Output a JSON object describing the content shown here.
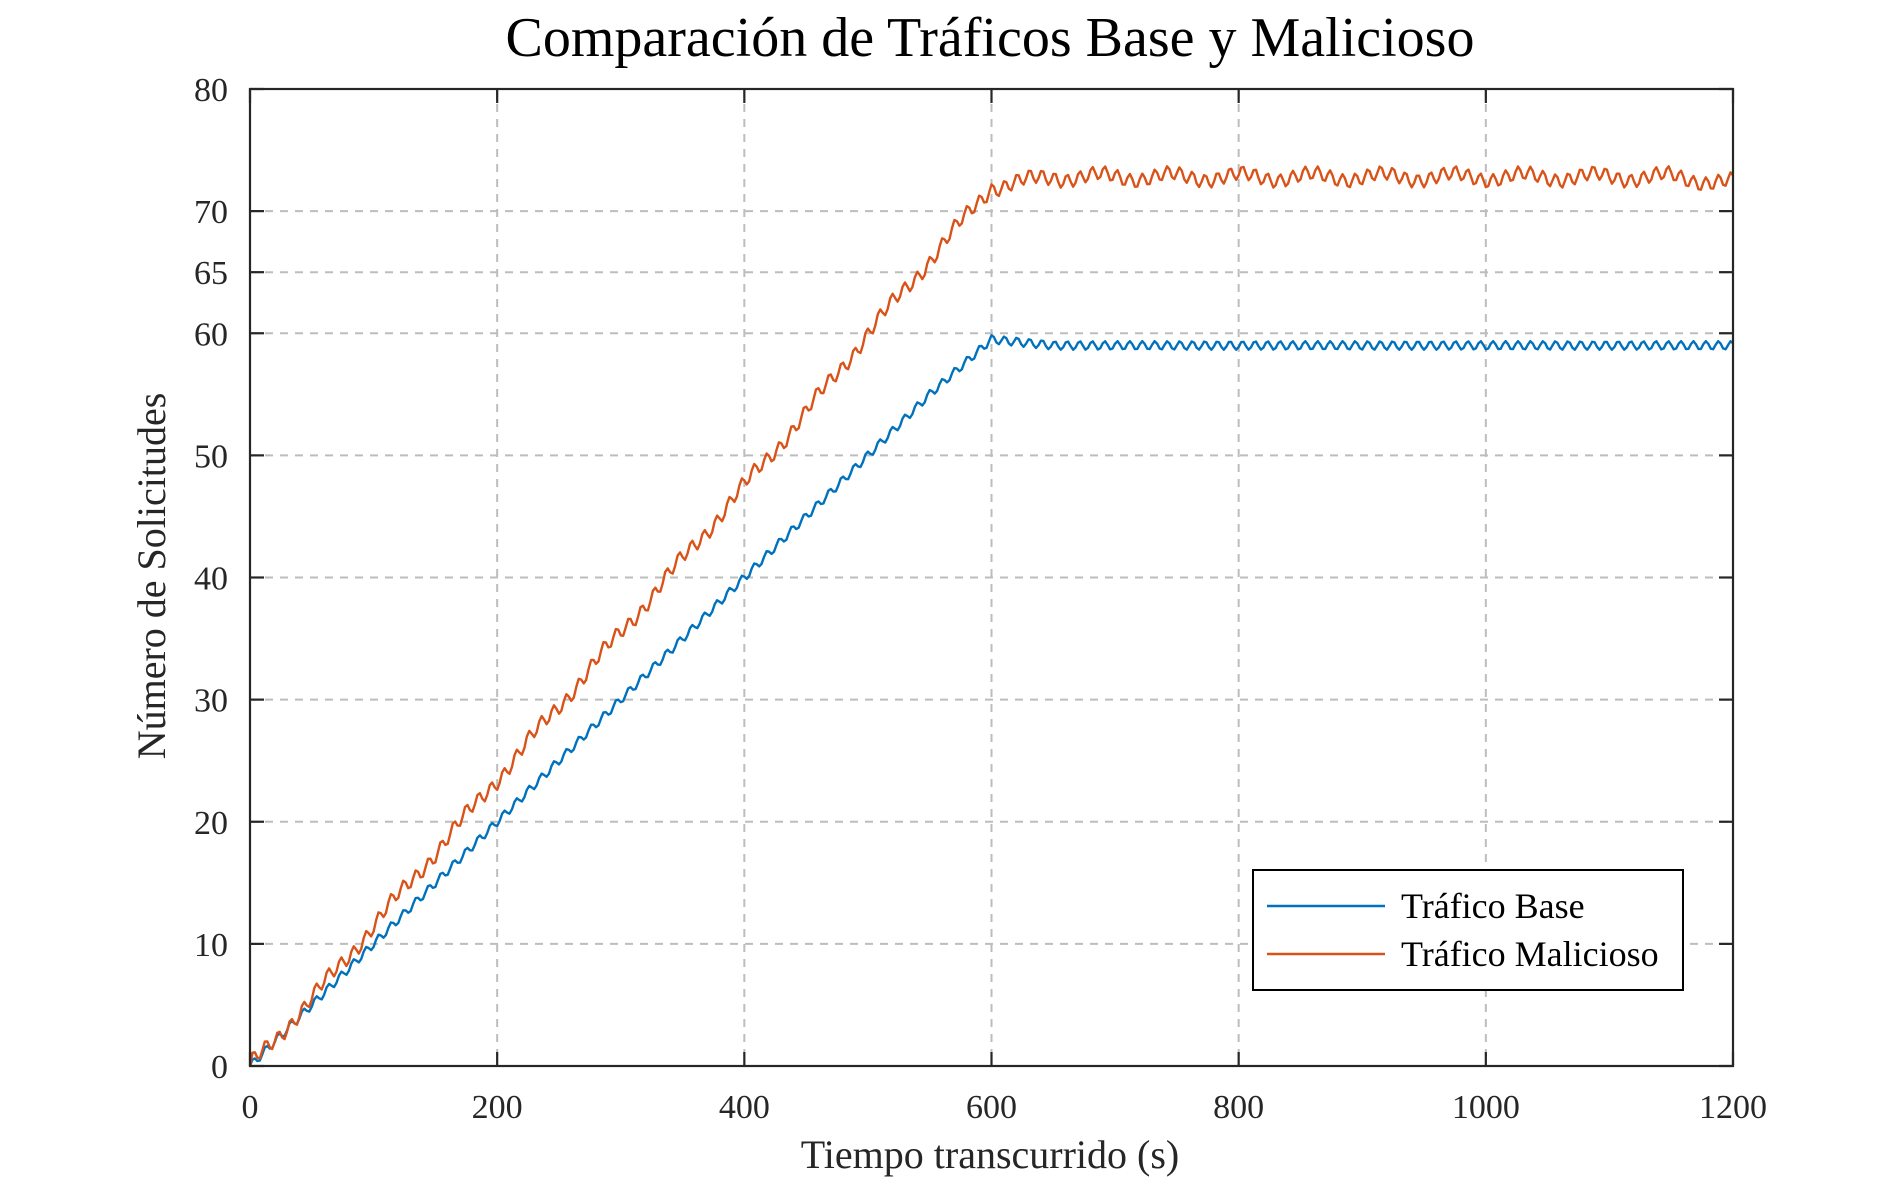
{
  "chart_data": {
    "type": "line",
    "title": "Comparación de Tráficos Base y Malicioso",
    "xlabel": "Tiempo transcurrido (s)",
    "ylabel": "Número de Solicitudes",
    "xlim": [
      0,
      1200
    ],
    "ylim": [
      0,
      80
    ],
    "xticks": [
      0,
      200,
      400,
      600,
      800,
      1000,
      1200
    ],
    "yticks": [
      0,
      10,
      20,
      30,
      40,
      50,
      60,
      65,
      70,
      80
    ],
    "grid": true,
    "legend_position": "bottom-right",
    "series": [
      {
        "name": "Tráfico Base",
        "color": "#0072BD",
        "x": [
          0,
          50,
          100,
          150,
          200,
          250,
          300,
          350,
          400,
          450,
          500,
          550,
          600,
          650,
          700,
          750,
          800,
          850,
          900,
          950,
          1000,
          1050,
          1100,
          1150,
          1200
        ],
        "y": [
          0,
          5,
          10,
          15,
          20,
          25,
          30,
          35,
          40,
          45,
          50,
          55,
          59.5,
          59,
          59,
          59,
          59,
          59,
          59,
          59,
          59,
          59,
          59,
          59,
          59
        ]
      },
      {
        "name": "Tráfico Malicioso",
        "color": "#D95319",
        "x": [
          0,
          50,
          100,
          150,
          200,
          250,
          300,
          350,
          400,
          450,
          500,
          550,
          600,
          650,
          700,
          750,
          800,
          850,
          900,
          950,
          1000,
          1050,
          1100,
          1150,
          1200
        ],
        "y": [
          0,
          5.5,
          11.5,
          17.5,
          23.5,
          29.5,
          35.5,
          41.5,
          47.5,
          53.5,
          60,
          66,
          72,
          72.8,
          72.8,
          72.8,
          72.8,
          72.8,
          72.8,
          72.8,
          72.8,
          72.8,
          72.8,
          72.8,
          72.3
        ]
      }
    ]
  }
}
